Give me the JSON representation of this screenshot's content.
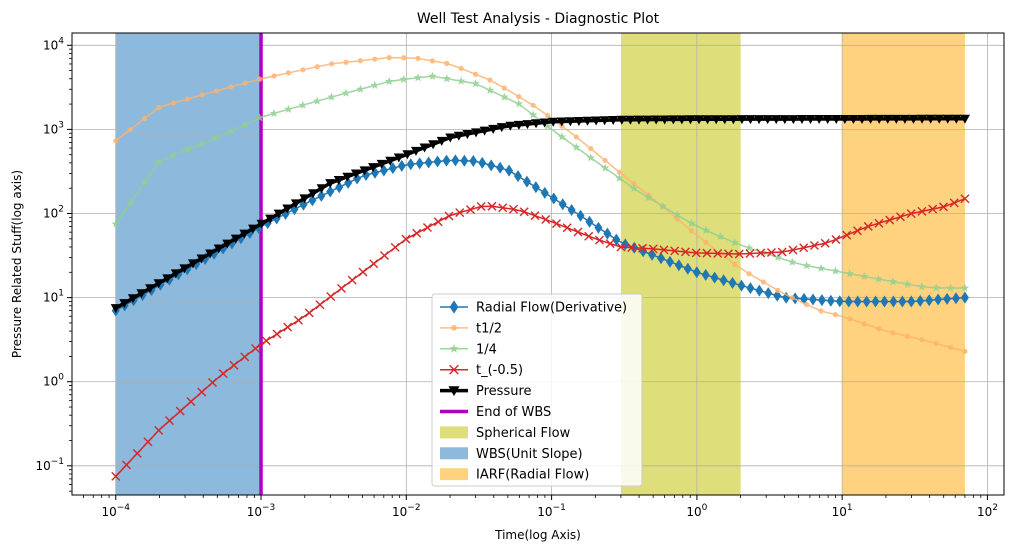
{
  "chart_data": {
    "type": "line",
    "title": "Well Test Analysis - Diagnostic Plot",
    "xlabel": "Time(log Axis)",
    "ylabel": "Pressure Related Stuff(log axis)",
    "xscale": "log",
    "yscale": "log",
    "xlim": [
      5e-05,
      130
    ],
    "ylim": [
      0.045,
      14000
    ],
    "grid": true,
    "legend_position": "lower-center",
    "x_ticks": [
      {
        "value": 0.0001,
        "base": "10",
        "exp": "−4"
      },
      {
        "value": 0.001,
        "base": "10",
        "exp": "−3"
      },
      {
        "value": 0.01,
        "base": "10",
        "exp": "−2"
      },
      {
        "value": 0.1,
        "base": "10",
        "exp": "−1"
      },
      {
        "value": 1,
        "base": "10",
        "exp": "0"
      },
      {
        "value": 10,
        "base": "10",
        "exp": "1"
      },
      {
        "value": 100,
        "base": "10",
        "exp": "2"
      }
    ],
    "y_ticks": [
      {
        "value": 0.1,
        "base": "10",
        "exp": "−1"
      },
      {
        "value": 1,
        "base": "10",
        "exp": "0"
      },
      {
        "value": 10,
        "base": "10",
        "exp": "1"
      },
      {
        "value": 100,
        "base": "10",
        "exp": "2"
      },
      {
        "value": 1000,
        "base": "10",
        "exp": "3"
      },
      {
        "value": 10000,
        "base": "10",
        "exp": "4"
      }
    ],
    "spans": [
      {
        "name": "Spherical Flow",
        "x0": 0.3,
        "x1": 2,
        "color": "#cccc33",
        "opacity": 0.65
      },
      {
        "name": "WBS(Unit Slope)",
        "x0": 0.0001,
        "x1": 0.001,
        "color": "#2e7fbf",
        "opacity": 0.55
      },
      {
        "name": "IARF(Radial Flow)",
        "x0": 10,
        "x1": 70,
        "color": "#ffa500",
        "opacity": 0.5
      }
    ],
    "vlines": [
      {
        "name": "End of WBS",
        "x": 0.001,
        "color": "#b000c0",
        "width": 3.5
      }
    ],
    "series": [
      {
        "name": "Radial Flow(Derivative)",
        "color": "#1f77b4",
        "marker": "diamond",
        "width": 1.5,
        "opacity": 1,
        "x_start": 0.0001,
        "x_end": 70,
        "n": 96,
        "anchors": [
          [
            0.0001,
            7
          ],
          [
            0.001,
            70
          ],
          [
            0.002,
            130
          ],
          [
            0.005,
            280
          ],
          [
            0.01,
            380
          ],
          [
            0.02,
            430
          ],
          [
            0.03,
            420
          ],
          [
            0.05,
            330
          ],
          [
            0.08,
            200
          ],
          [
            0.15,
            100
          ],
          [
            0.3,
            45
          ],
          [
            0.5,
            32
          ],
          [
            1,
            20
          ],
          [
            2,
            14
          ],
          [
            4,
            10
          ],
          [
            10,
            9
          ],
          [
            30,
            9
          ],
          [
            70,
            10
          ]
        ]
      },
      {
        "name": "t1/2",
        "color": "#ffb26e",
        "marker": "dot",
        "width": 1.5,
        "opacity": 0.85,
        "x_start": 0.0001,
        "x_end": 70,
        "n": 60,
        "anchors": [
          [
            0.0001,
            730
          ],
          [
            0.0002,
            1850
          ],
          [
            0.0004,
            2600
          ],
          [
            0.001,
            4000
          ],
          [
            0.003,
            6000
          ],
          [
            0.008,
            7200
          ],
          [
            0.012,
            7000
          ],
          [
            0.02,
            6000
          ],
          [
            0.04,
            3700
          ],
          [
            0.08,
            1800
          ],
          [
            0.15,
            800
          ],
          [
            0.3,
            300
          ],
          [
            0.5,
            150
          ],
          [
            1,
            55
          ],
          [
            2,
            22
          ],
          [
            4,
            11
          ],
          [
            7,
            7
          ],
          [
            10,
            6
          ],
          [
            20,
            4
          ],
          [
            40,
            3
          ],
          [
            70,
            2.3
          ]
        ]
      },
      {
        "name": "1/4",
        "color": "#8fd08f",
        "marker": "star",
        "width": 1.5,
        "opacity": 0.85,
        "x_start": 0.0001,
        "x_end": 70,
        "n": 60,
        "anchors": [
          [
            0.0001,
            75
          ],
          [
            0.0002,
            420
          ],
          [
            0.0005,
            800
          ],
          [
            0.001,
            1400
          ],
          [
            0.003,
            2400
          ],
          [
            0.008,
            3800
          ],
          [
            0.015,
            4300
          ],
          [
            0.03,
            3500
          ],
          [
            0.06,
            2000
          ],
          [
            0.1,
            1000
          ],
          [
            0.2,
            420
          ],
          [
            0.4,
            180
          ],
          [
            1,
            70
          ],
          [
            2,
            42
          ],
          [
            5,
            25
          ],
          [
            10,
            20
          ],
          [
            20,
            16
          ],
          [
            40,
            13
          ],
          [
            70,
            13
          ]
        ]
      },
      {
        "name": "t_(-0.5)",
        "color": "#d62728",
        "marker": "x",
        "width": 1.5,
        "opacity": 1,
        "x_start": 0.0001,
        "x_end": 70,
        "n": 80,
        "anchors": [
          [
            0.0001,
            0.075
          ],
          [
            0.0002,
            0.27
          ],
          [
            0.0005,
            1.1
          ],
          [
            0.001,
            2.8
          ],
          [
            0.002,
            6
          ],
          [
            0.005,
            20
          ],
          [
            0.01,
            50
          ],
          [
            0.02,
            95
          ],
          [
            0.035,
            125
          ],
          [
            0.06,
            110
          ],
          [
            0.1,
            80
          ],
          [
            0.2,
            50
          ],
          [
            0.3,
            40
          ],
          [
            0.5,
            38
          ],
          [
            1,
            34
          ],
          [
            2,
            33
          ],
          [
            4,
            35
          ],
          [
            8,
            45
          ],
          [
            15,
            70
          ],
          [
            30,
            100
          ],
          [
            50,
            120
          ],
          [
            70,
            150
          ]
        ]
      },
      {
        "name": "Pressure",
        "color": "#000000",
        "marker": "triangle-down",
        "width": 3.5,
        "opacity": 1,
        "x_start": 0.0001,
        "x_end": 70,
        "n": 100,
        "anchors": [
          [
            0.0001,
            7.5
          ],
          [
            0.001,
            75
          ],
          [
            0.003,
            230
          ],
          [
            0.01,
            500
          ],
          [
            0.02,
            800
          ],
          [
            0.05,
            1100
          ],
          [
            0.1,
            1230
          ],
          [
            0.3,
            1300
          ],
          [
            1,
            1320
          ],
          [
            10,
            1330
          ],
          [
            70,
            1340
          ]
        ]
      }
    ],
    "legend_entries": [
      {
        "label": "Radial Flow(Derivative)",
        "kind": "line",
        "color": "#1f77b4",
        "marker": "diamond",
        "width": 1.5,
        "opacity": 1
      },
      {
        "label": "t1/2",
        "kind": "line",
        "color": "#ffb26e",
        "marker": "dot",
        "width": 1.5,
        "opacity": 0.85
      },
      {
        "label": "1/4",
        "kind": "line",
        "color": "#8fd08f",
        "marker": "star",
        "width": 1.5,
        "opacity": 0.85
      },
      {
        "label": "t_(-0.5)",
        "kind": "line",
        "color": "#d62728",
        "marker": "x",
        "width": 1.5,
        "opacity": 1
      },
      {
        "label": "Pressure",
        "kind": "line",
        "color": "#000000",
        "marker": "triangle-down",
        "width": 3.5,
        "opacity": 1
      },
      {
        "label": "End of WBS",
        "kind": "line",
        "color": "#b000c0",
        "marker": "none",
        "width": 3.5,
        "opacity": 1
      },
      {
        "label": "Spherical Flow",
        "kind": "patch",
        "color": "#cccc33",
        "opacity": 0.65
      },
      {
        "label": "WBS(Unit Slope)",
        "kind": "patch",
        "color": "#2e7fbf",
        "opacity": 0.55
      },
      {
        "label": "IARF(Radial Flow)",
        "kind": "patch",
        "color": "#ffa500",
        "opacity": 0.5
      }
    ]
  }
}
